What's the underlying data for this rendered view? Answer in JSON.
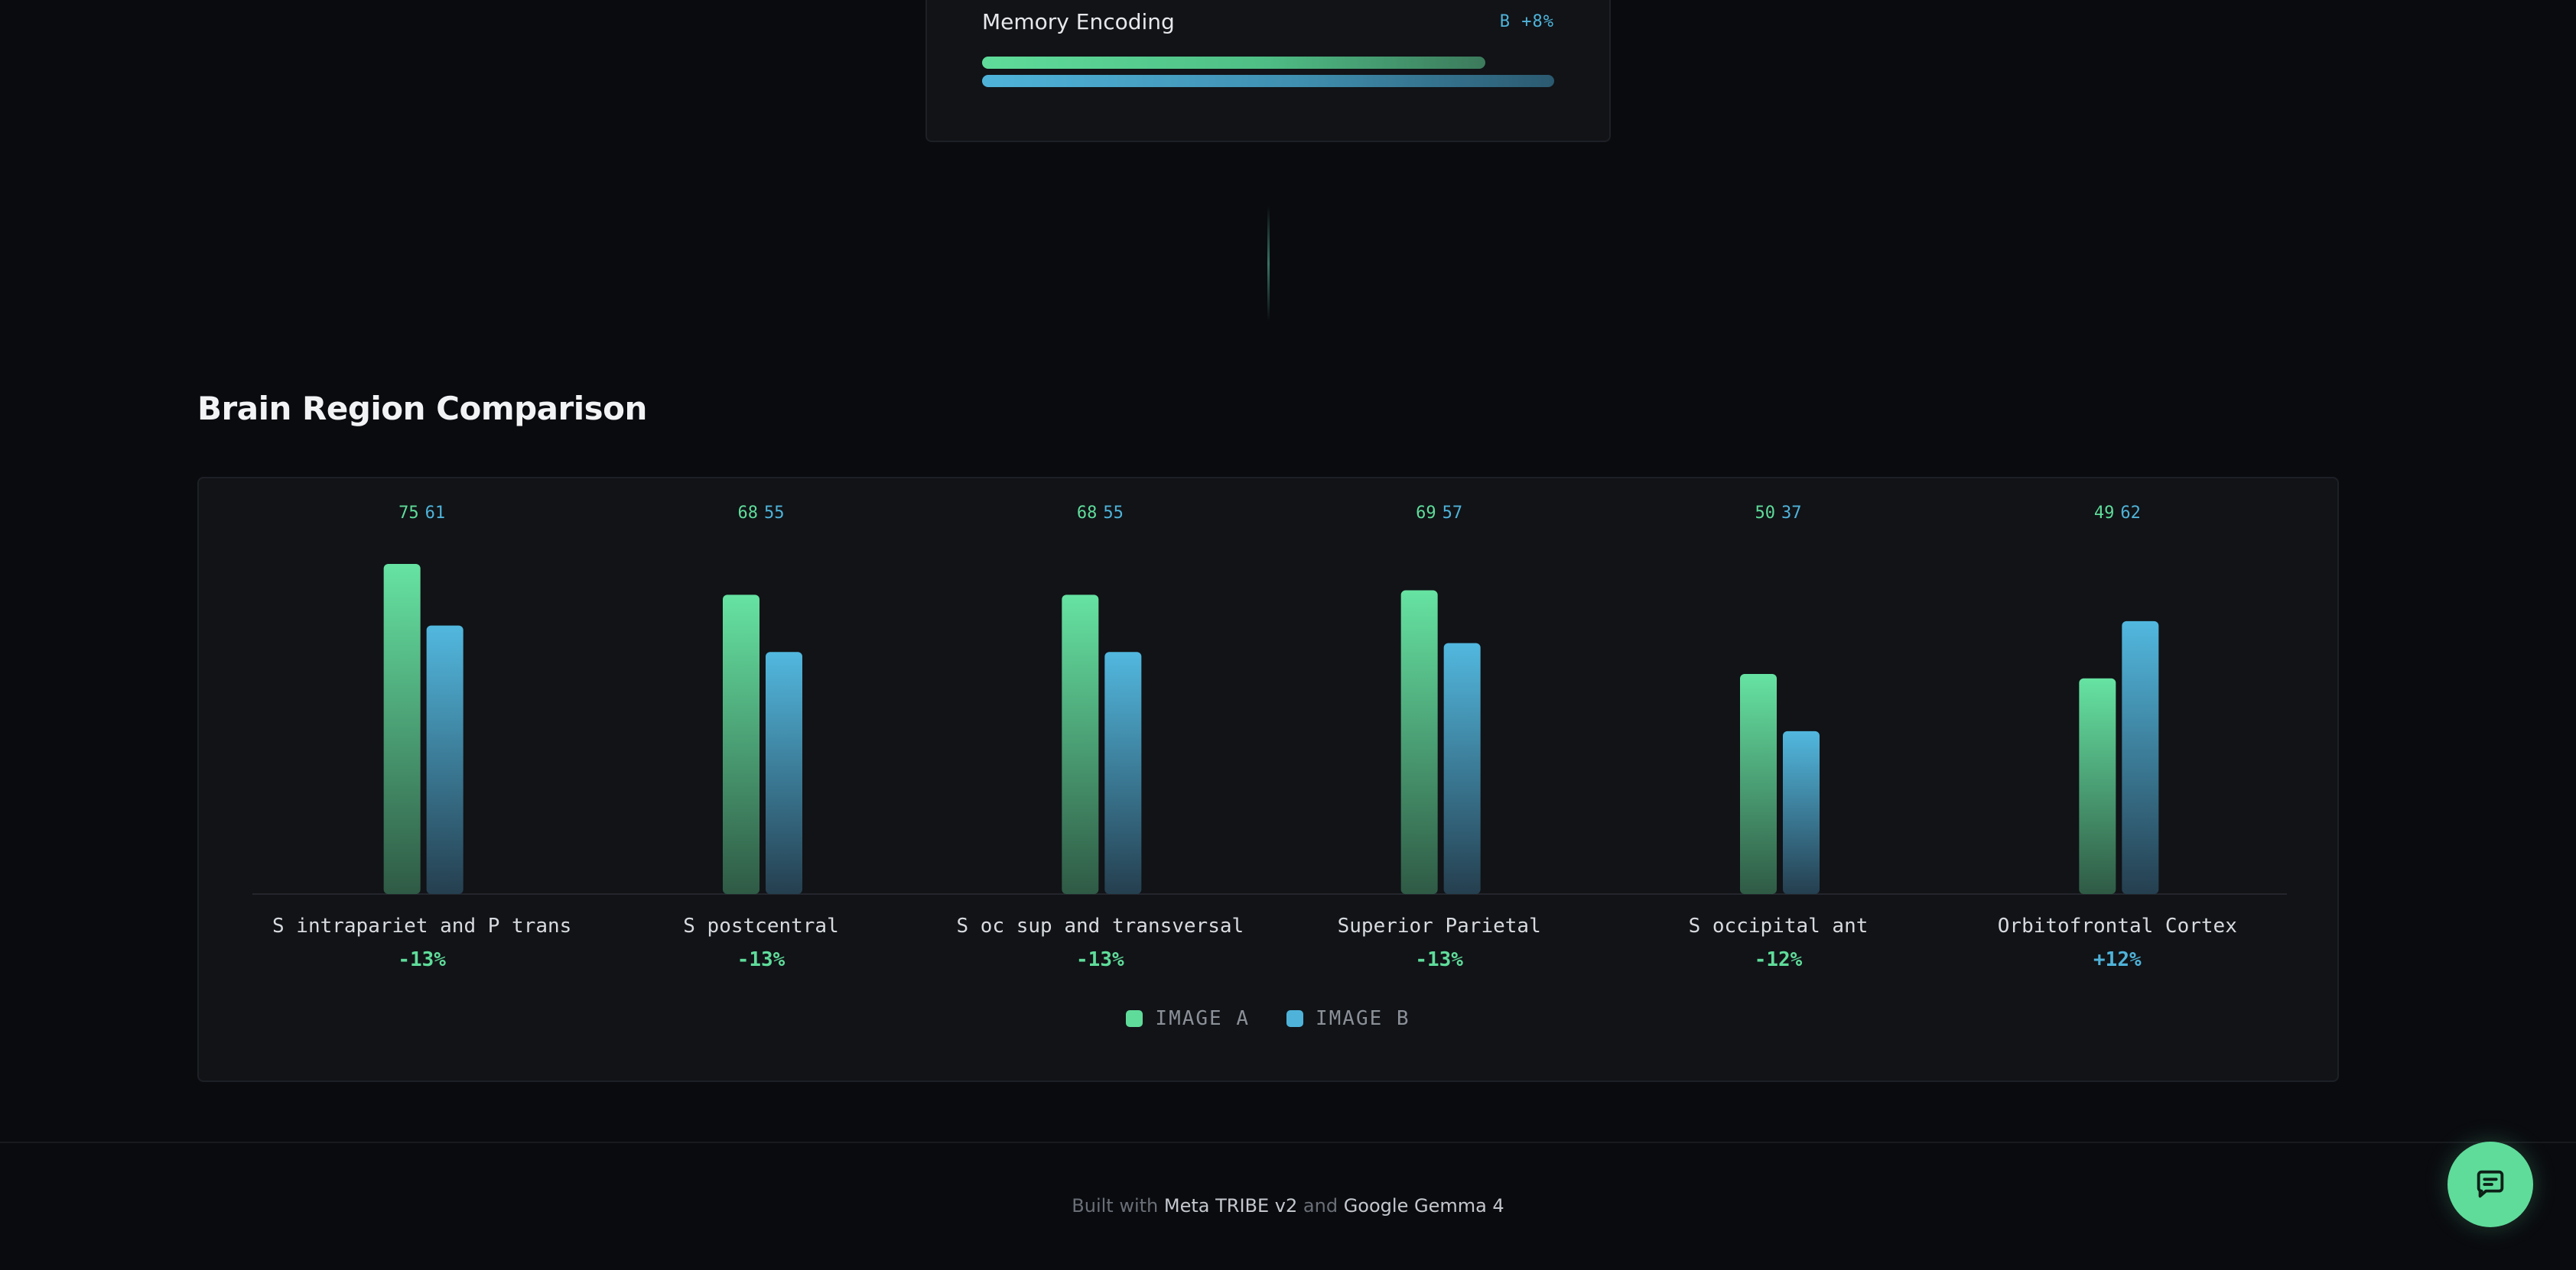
{
  "memory_card": {
    "title": "Memory Encoding",
    "delta_label": "B  +8%",
    "bar_a_fraction": 0.88,
    "bar_b_fraction": 1.0
  },
  "section": {
    "title": "Brain Region Comparison"
  },
  "colors": {
    "image_a": "#5fdc9a",
    "image_b": "#4fb3d9",
    "background": "#0a0b0f",
    "card": "#111317"
  },
  "chart_data": {
    "type": "bar",
    "categories": [
      "S intrapariet and P trans",
      "S postcentral",
      "S oc sup and transversal",
      "Superior Parietal",
      "S occipital ant",
      "Orbitofrontal Cortex"
    ],
    "series": [
      {
        "name": "IMAGE A",
        "values": [
          75,
          68,
          68,
          69,
          50,
          49
        ]
      },
      {
        "name": "IMAGE B",
        "values": [
          61,
          55,
          55,
          57,
          37,
          62
        ]
      }
    ],
    "differences": [
      "-13%",
      "-13%",
      "-13%",
      "-13%",
      "-12%",
      "+12%"
    ],
    "legend": [
      "IMAGE A",
      "IMAGE B"
    ],
    "legend_placement": "bottom-center",
    "ylim": [
      0,
      75
    ],
    "grid": false
  },
  "footer": {
    "prefix": "Built with ",
    "tech1": "Meta TRIBE v2",
    "joiner": " and ",
    "tech2": "Google Gemma 4"
  },
  "chat_button": {
    "icon": "chat-bubble-icon"
  }
}
